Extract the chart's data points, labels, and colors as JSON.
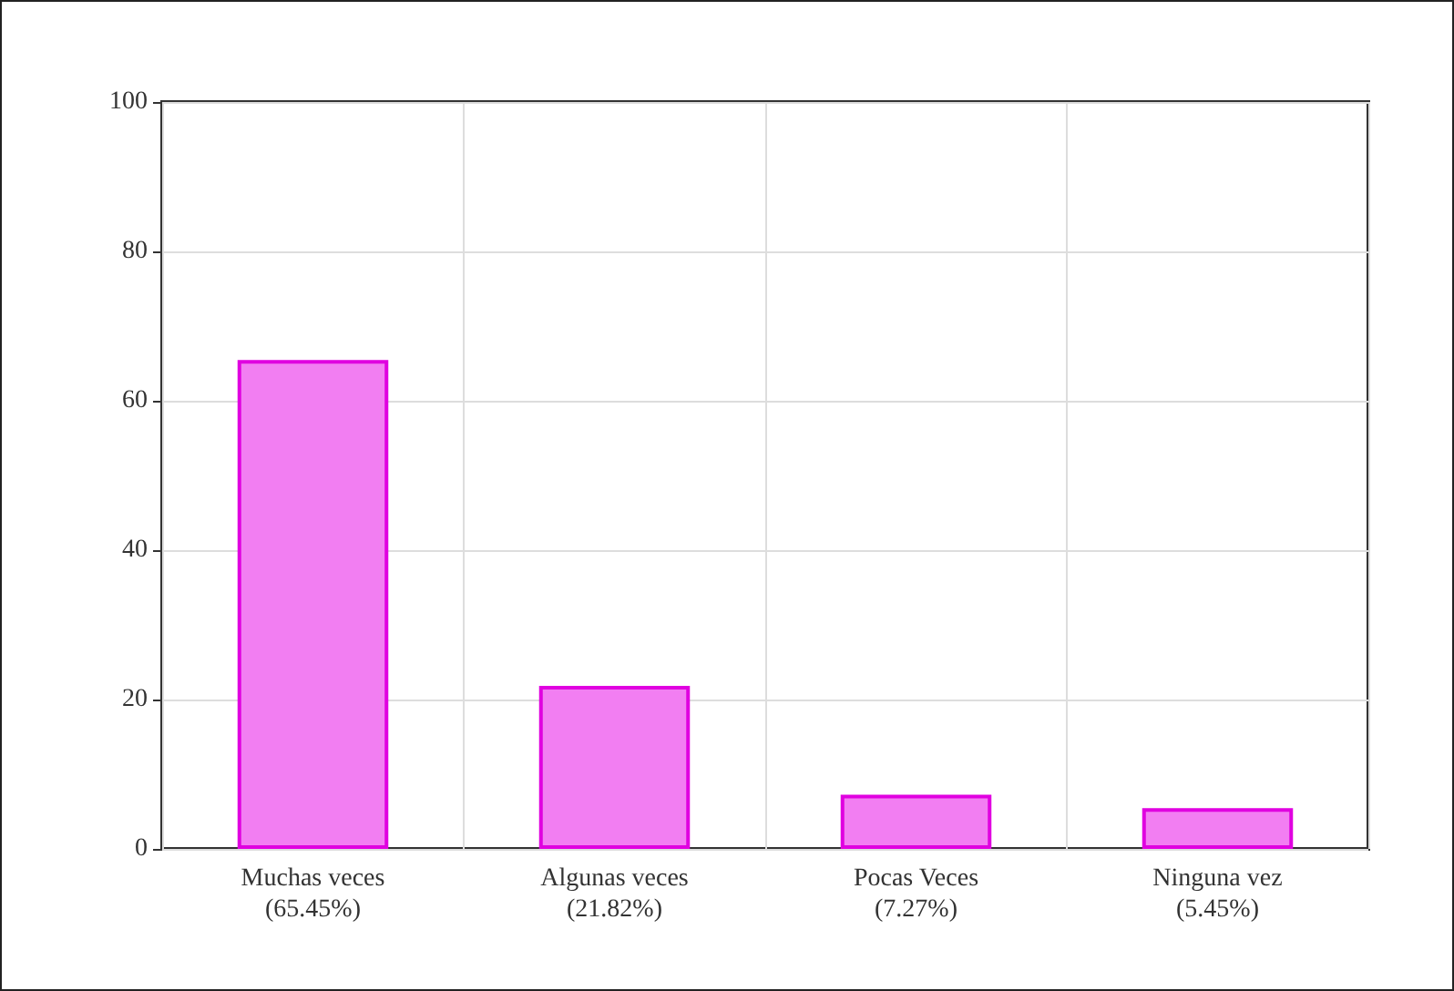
{
  "chart_data": {
    "type": "bar",
    "categories": [
      "Muchas veces\n(65.45%)",
      "Algunas veces\n(21.82%)",
      "Pocas Veces\n(7.27%)",
      "Ninguna vez\n(5.45%)"
    ],
    "values": [
      65.45,
      21.82,
      7.27,
      5.45
    ],
    "color": "#f27ef2",
    "ylim": [
      0,
      100
    ],
    "yticks": [
      0,
      20,
      40,
      60,
      80,
      100
    ],
    "grid": true
  }
}
